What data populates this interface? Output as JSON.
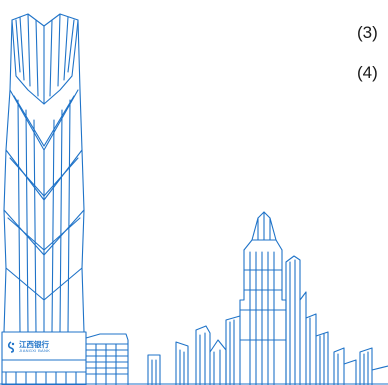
{
  "markers": [
    "(3)",
    "(4)"
  ],
  "bank": {
    "name_cn": "江西银行",
    "name_en": "JIANGXI BANK",
    "logo_icon": "bank-logo-icon"
  },
  "colors": {
    "line": "#1f73c8",
    "text": "#1a1a1a",
    "background": "#ffffff"
  }
}
